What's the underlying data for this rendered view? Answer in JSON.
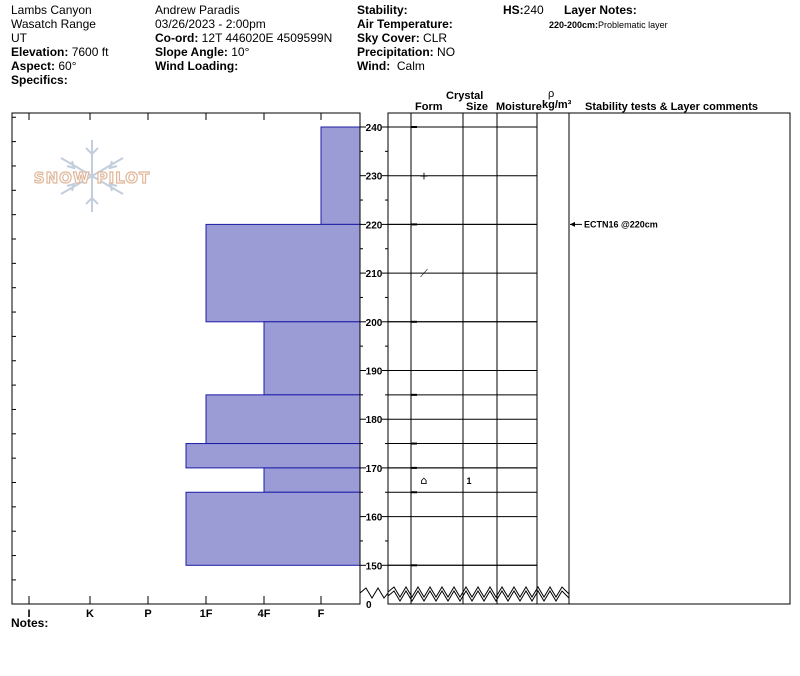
{
  "header": {
    "location": "Lambs Canyon",
    "range": "Wasatch Range",
    "state": "UT",
    "elevation_label": "Elevation:",
    "elevation_value": "7600 ft",
    "aspect_label": "Aspect:",
    "aspect_value": "60°",
    "specifics_label": "Specifics:",
    "observer": "Andrew Paradis",
    "datetime": "03/26/2023 - 2:00pm",
    "coord_label": "Co-ord:",
    "coord_value": "12T 446020E 4509599N",
    "slope_label": "Slope Angle:",
    "slope_value": "10°",
    "wind_loading_label": "Wind Loading:",
    "stability_label": "Stability:",
    "air_temp_label": "Air Temperature:",
    "sky_label": "Sky Cover:",
    "sky_value": "CLR",
    "precip_label": "Precipitation:",
    "precip_value": "NO",
    "wind_label": "Wind:",
    "wind_value": "Calm",
    "hs_label": "HS:",
    "hs_value": "240",
    "layer_notes_label": "Layer Notes:",
    "layer_note_range": "220-200cm:",
    "layer_note_text": "Problematic layer"
  },
  "watermark": "SNOW PILOT",
  "columns": {
    "form": "Form",
    "crystal": "Crystal",
    "size": "Size",
    "moisture": "Moisture",
    "rho": "ρ",
    "density": "kg/m³",
    "stability": "Stability tests & Layer comments"
  },
  "notes_label": "Notes:",
  "stability_tests": [
    {
      "depth": 220,
      "text": "ECTN16 @220cm"
    }
  ],
  "chart_data": {
    "type": "bar",
    "title": "",
    "xlabel": "",
    "ylabel": "",
    "hardness_scale": [
      "I",
      "K",
      "P",
      "1F",
      "4F",
      "F"
    ],
    "height_ticks": [
      240,
      230,
      220,
      210,
      200,
      190,
      180,
      170,
      160,
      150
    ],
    "break_tick": "0",
    "ylim": [
      150,
      240
    ],
    "layers": [
      {
        "top": 240,
        "bottom": 220,
        "hardness": "F",
        "form": "+",
        "size": "",
        "moisture": ""
      },
      {
        "top": 220,
        "bottom": 200,
        "hardness": "1F",
        "form": "⟋",
        "size": "",
        "moisture": ""
      },
      {
        "top": 200,
        "bottom": 185,
        "hardness": "4F",
        "form": "",
        "size": "",
        "moisture": ""
      },
      {
        "top": 185,
        "bottom": 175,
        "hardness": "1F",
        "form": "",
        "size": "",
        "moisture": ""
      },
      {
        "top": 175,
        "bottom": 170,
        "hardness": "1F-",
        "form": "",
        "size": "",
        "moisture": ""
      },
      {
        "top": 170,
        "bottom": 165,
        "hardness": "4F",
        "form": "⌂",
        "size": "1",
        "moisture": ""
      },
      {
        "top": 165,
        "bottom": 150,
        "hardness": "1F-",
        "form": "",
        "size": "",
        "moisture": ""
      }
    ],
    "colors": {
      "bar_fill": "#9b9bd6",
      "bar_stroke": "#1c1ca8"
    }
  }
}
